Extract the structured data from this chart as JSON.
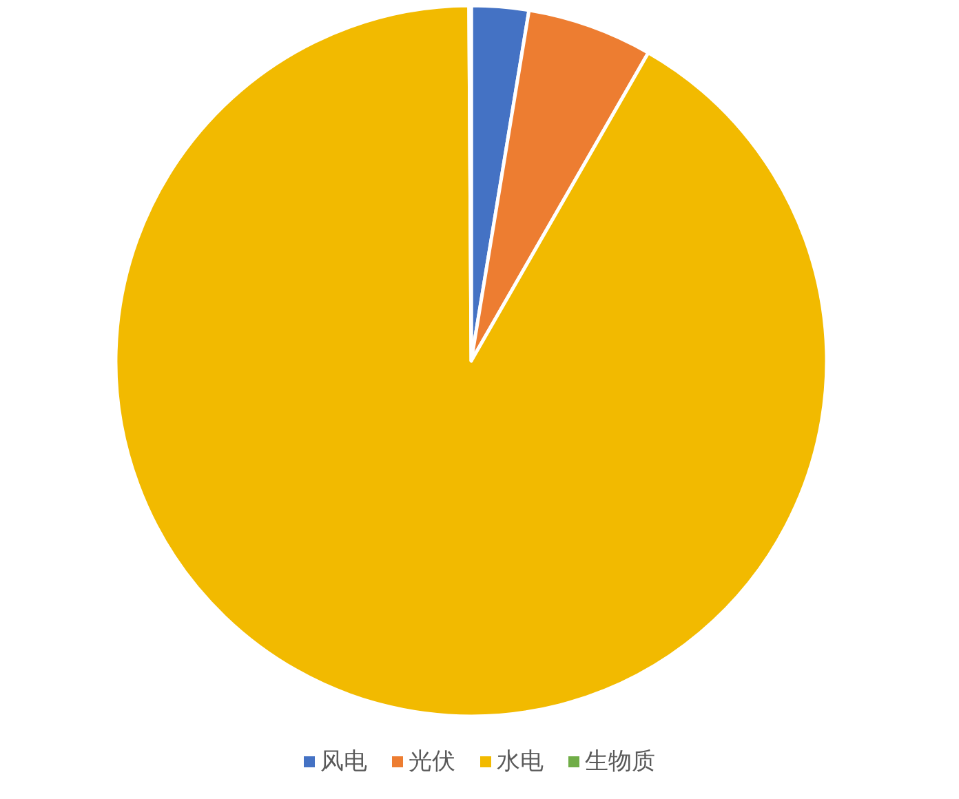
{
  "chart_data": {
    "type": "pie",
    "categories": [
      "风电",
      "光伏",
      "水电",
      "生物质"
    ],
    "values": [
      2.6,
      5.7,
      91.6,
      0.1
    ],
    "colors": [
      "#4472c4",
      "#ed7d31",
      "#f2ba00",
      "#70ad47"
    ],
    "legend": "bottom"
  }
}
